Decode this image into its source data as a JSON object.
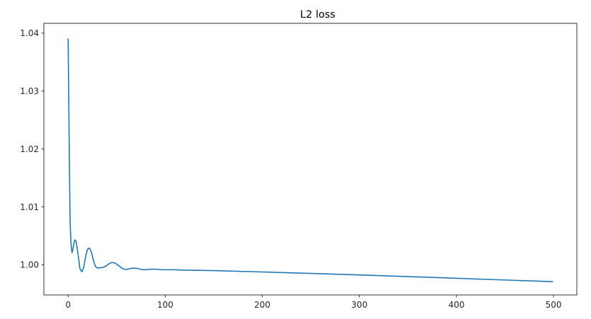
{
  "chart_data": {
    "type": "line",
    "title": "L2 loss",
    "xlabel": "",
    "ylabel": "",
    "xlim": [
      -25,
      524
    ],
    "ylim": [
      0.9948,
      1.0417
    ],
    "grid": false,
    "x_ticks": [
      0,
      100,
      200,
      300,
      400,
      500
    ],
    "x_tick_labels": [
      "0",
      "100",
      "200",
      "300",
      "400",
      "500"
    ],
    "y_ticks": [
      1.0,
      1.01,
      1.02,
      1.03,
      1.04
    ],
    "y_tick_labels": [
      "1.00",
      "1.01",
      "1.02",
      "1.03",
      "1.04"
    ],
    "series": [
      {
        "color": "#1f77b4",
        "x": [
          0,
          1,
          2,
          3,
          4,
          5,
          6,
          7,
          8,
          9,
          10,
          11,
          12,
          14,
          16,
          18,
          20,
          22,
          24,
          26,
          28,
          30,
          33,
          36,
          40,
          43,
          46,
          49,
          52,
          56,
          60,
          64,
          68,
          72,
          76,
          80,
          85,
          90,
          95,
          100,
          110,
          120,
          150,
          200,
          250,
          300,
          350,
          400,
          450,
          499
        ],
        "y": [
          1.039,
          1.022,
          1.0075,
          1.0035,
          1.0021,
          1.0028,
          1.0038,
          1.0043,
          1.0041,
          1.0032,
          1.002,
          1.0009,
          0.9994,
          0.9988,
          0.9995,
          1.0015,
          1.0027,
          1.0029,
          1.0022,
          1.0008,
          0.99975,
          0.99945,
          0.9995,
          0.99955,
          0.9999,
          1.0003,
          1.0004,
          1.00025,
          0.99985,
          0.99935,
          0.9992,
          0.99935,
          0.99945,
          0.99935,
          0.99918,
          0.99915,
          0.99925,
          0.99925,
          0.99918,
          0.99915,
          0.99915,
          0.99908,
          0.999,
          0.99877,
          0.99852,
          0.99826,
          0.99797,
          0.99768,
          0.99738,
          0.9971
        ]
      }
    ]
  }
}
